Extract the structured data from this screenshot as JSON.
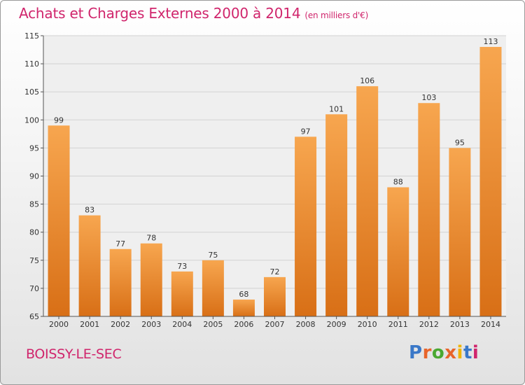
{
  "header": {
    "title": "Achats et Charges Externes 2000 à 2014",
    "subtitle": "(en milliers d'€)"
  },
  "footer": {
    "commune": "BOISSY-LE-SEC",
    "brand": "Proxiti",
    "brand_letters": [
      {
        "ch": "P",
        "color": "#3a78c8"
      },
      {
        "ch": "r",
        "color": "#e8642a"
      },
      {
        "ch": "o",
        "color": "#4aa832"
      },
      {
        "ch": "x",
        "color": "#e8642a"
      },
      {
        "ch": "i",
        "color": "#f0b400"
      },
      {
        "ch": "t",
        "color": "#3a78c8"
      },
      {
        "ch": "i",
        "color": "#d0256c"
      }
    ]
  },
  "colors": {
    "title": "#d0256c",
    "bar_light": "#f7a64f",
    "bar_dark": "#d86f16",
    "plot_bg": "#efefef"
  },
  "chart_data": {
    "type": "bar",
    "categories": [
      "2000",
      "2001",
      "2002",
      "2003",
      "2004",
      "2005",
      "2006",
      "2007",
      "2008",
      "2009",
      "2010",
      "2011",
      "2012",
      "2013",
      "2014"
    ],
    "values": [
      99,
      83,
      77,
      78,
      73,
      75,
      68,
      72,
      97,
      101,
      106,
      88,
      103,
      95,
      113
    ],
    "ylim": [
      65,
      115
    ],
    "yticks": [
      65,
      70,
      75,
      80,
      85,
      90,
      95,
      100,
      105,
      110,
      115
    ],
    "grid": true,
    "data_labels": true
  }
}
